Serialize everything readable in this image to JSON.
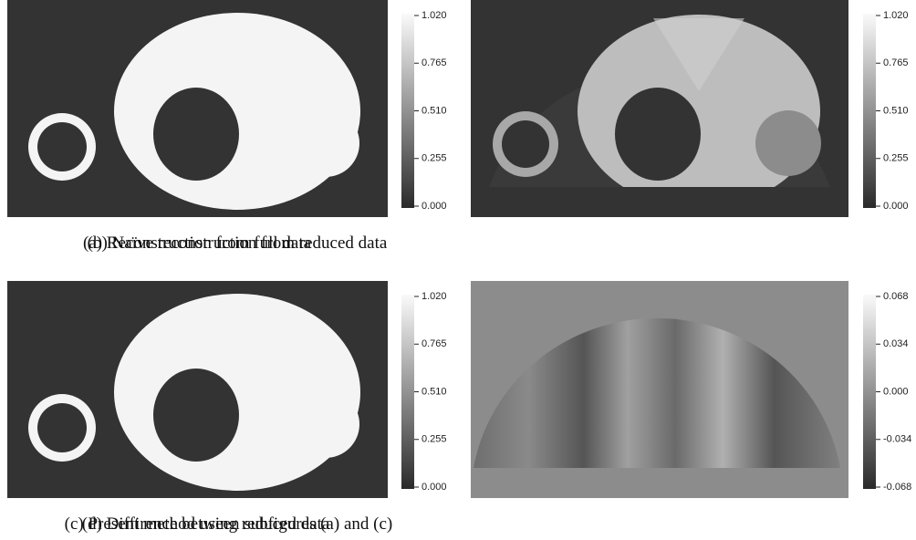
{
  "panels": [
    {
      "caption": "(a)  Reconstruction from full data",
      "colorbar_ticks": [
        "1.020",
        "0.765",
        "0.510",
        "0.255",
        "0.000"
      ]
    },
    {
      "caption": "(b)  Naïve reconstruction from reduced data",
      "colorbar_ticks": [
        "1.020",
        "0.765",
        "0.510",
        "0.255",
        "0.000"
      ]
    },
    {
      "caption": "(c)  Present method using reduced data",
      "colorbar_ticks": [
        "1.020",
        "0.765",
        "0.510",
        "0.255",
        "0.000"
      ]
    },
    {
      "caption": "(d)  Diffirence between subfigures (a) and (c)",
      "colorbar_ticks": [
        "0.068",
        "0.034",
        "0.000",
        "-0.034",
        "-0.068"
      ]
    }
  ]
}
